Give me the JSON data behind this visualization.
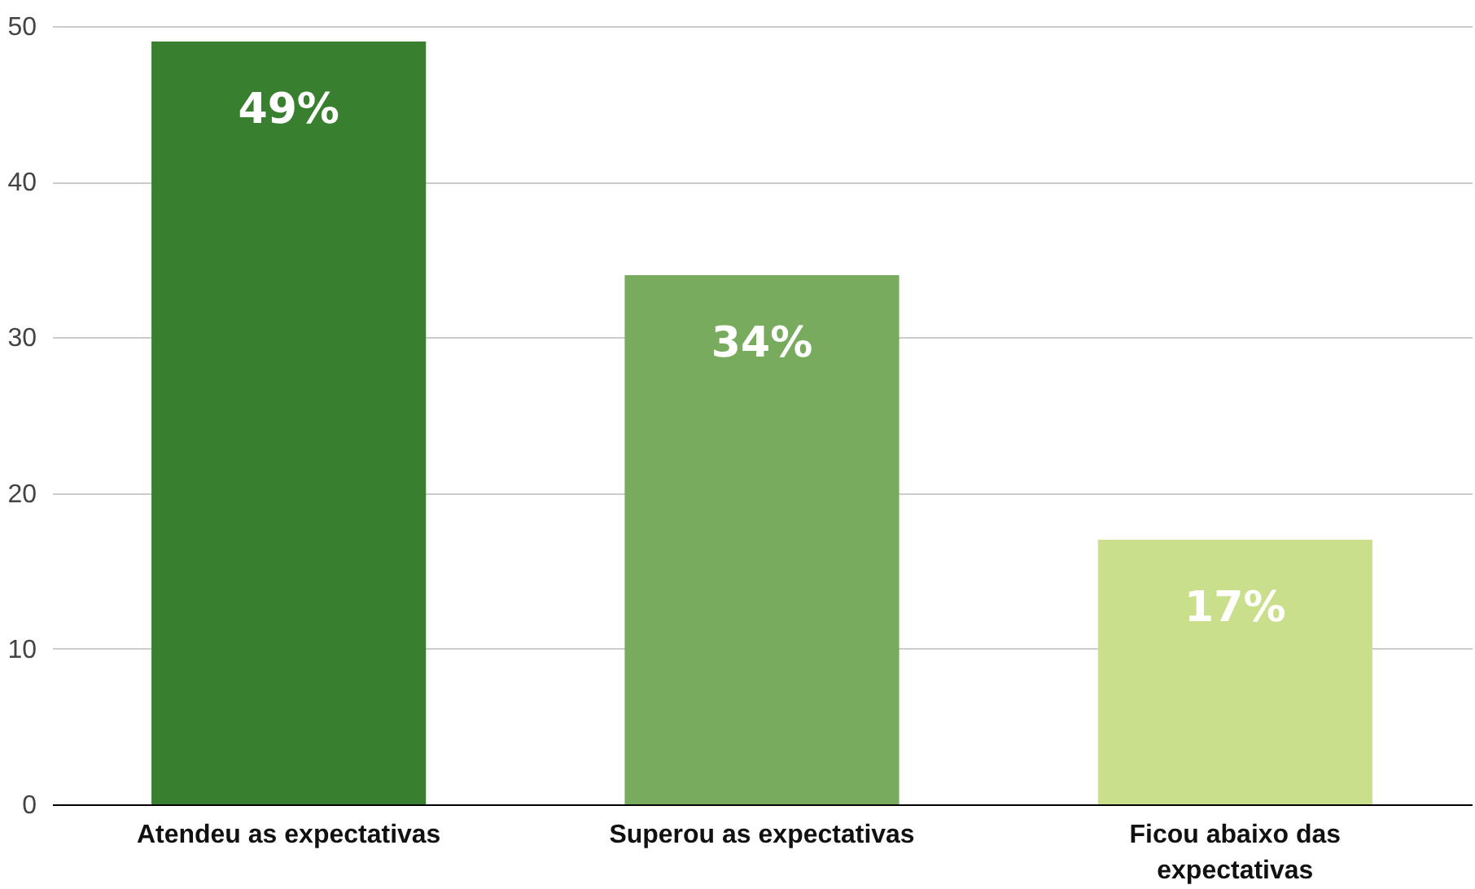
{
  "chart_data": {
    "type": "bar",
    "categories": [
      "Atendeu as expectativas",
      "Superou as expectativas",
      "Ficou abaixo das expectativas"
    ],
    "values": [
      49,
      34,
      17
    ],
    "colors": [
      "#38802f",
      "#78ab5e",
      "#c9df8c"
    ],
    "value_labels": [
      "49%",
      "34%",
      "17%"
    ],
    "ylim": [
      0,
      50
    ],
    "yticks": [
      0,
      10,
      20,
      30,
      40,
      50
    ],
    "grid": "y"
  }
}
